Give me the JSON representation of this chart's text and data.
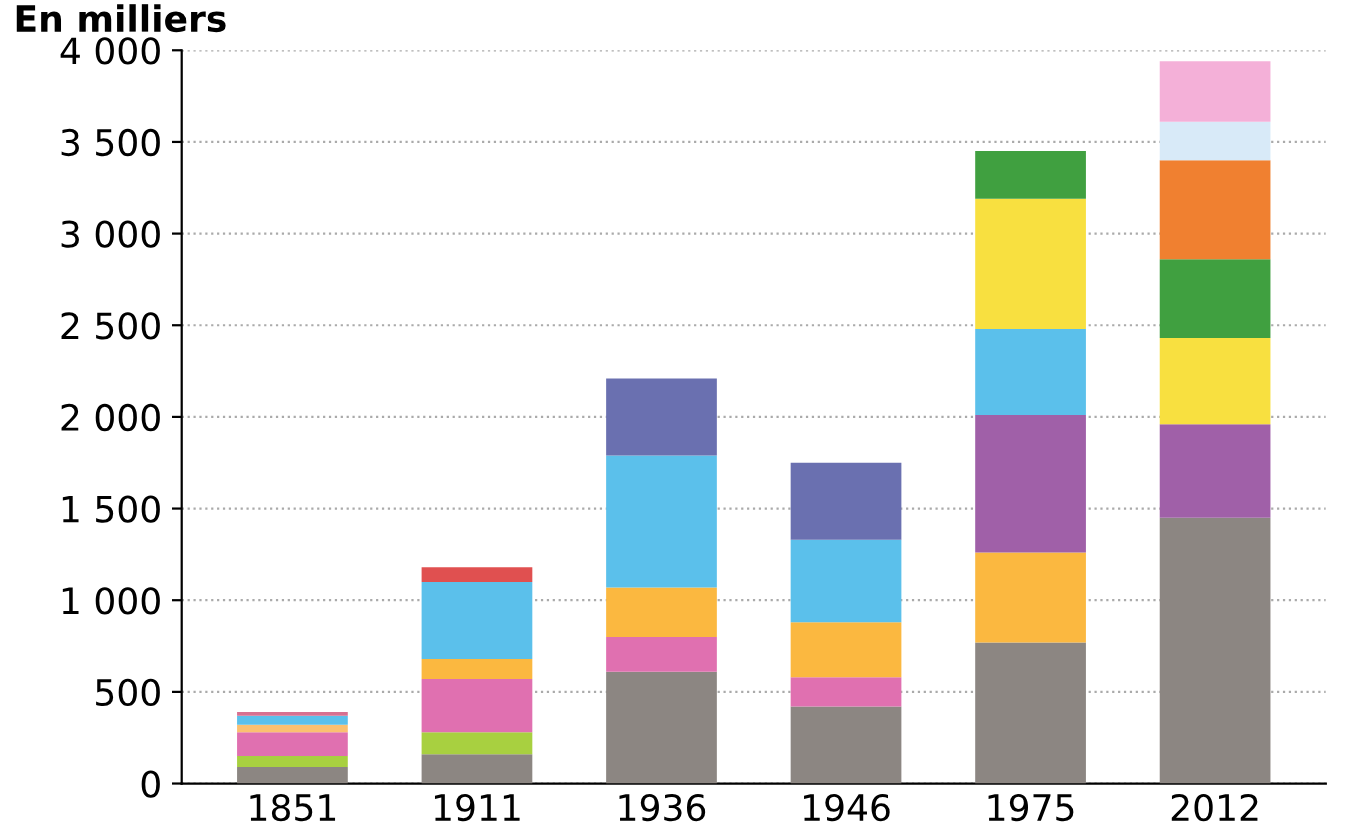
{
  "chart_data": {
    "type": "bar",
    "stacked": true,
    "title": "En milliers",
    "categories": [
      "1851",
      "1911",
      "1936",
      "1946",
      "1975",
      "2012"
    ],
    "series": [
      {
        "colors": [
          "#8c8682",
          "#8c8682",
          "#8c8682",
          "#8c8682",
          "#8c8682",
          "#8c8682"
        ],
        "values": [
          90,
          160,
          610,
          420,
          770,
          1450
        ]
      },
      {
        "colors": [
          "#a8d040",
          "#a8d040",
          "#e070b0",
          "#e070b0",
          "#fbb840",
          "#a060a8"
        ],
        "values": [
          60,
          120,
          190,
          160,
          490,
          510
        ]
      },
      {
        "colors": [
          "#e070b0",
          "#e070b0",
          "#fbb840",
          "#fbb840",
          "#a060a8",
          "#f8e040"
        ],
        "values": [
          130,
          290,
          270,
          300,
          750,
          470
        ]
      },
      {
        "colors": [
          "#fbc070",
          "#fbb840",
          "#5bc0eb",
          "#5bc0eb",
          "#5bc0eb",
          "#40a040"
        ],
        "values": [
          40,
          110,
          720,
          450,
          470,
          430
        ]
      },
      {
        "colors": [
          "#5bc0eb",
          "#5bc0eb",
          "#6a70b0",
          "#6a70b0",
          "#f8e040",
          "#f08030"
        ],
        "values": [
          50,
          420,
          420,
          420,
          710,
          540
        ]
      },
      {
        "colors": [
          "#d87090",
          "#e05050",
          "#ffffff",
          "#ffffff",
          "#40a040",
          "#d8eaf8"
        ],
        "values": [
          20,
          80,
          null,
          null,
          260,
          210
        ]
      },
      {
        "colors": [
          "#ffffff",
          "#ffffff",
          "#ffffff",
          "#ffffff",
          "#ffffff",
          "#f4b0d8"
        ],
        "values": [
          null,
          null,
          null,
          null,
          null,
          330
        ]
      }
    ],
    "ylim": [
      0,
      4000
    ],
    "yticks": [
      {
        "value": 0,
        "label": "0"
      },
      {
        "value": 500,
        "label": "500"
      },
      {
        "value": 1000,
        "label": "1 000"
      },
      {
        "value": 1500,
        "label": "1 500"
      },
      {
        "value": 2000,
        "label": "2 000"
      },
      {
        "value": 2500,
        "label": "2 500"
      },
      {
        "value": 3000,
        "label": "3 000"
      },
      {
        "value": 3500,
        "label": "3 500"
      },
      {
        "value": 4000,
        "label": "4 000"
      }
    ],
    "grid": "y",
    "legend": false
  }
}
